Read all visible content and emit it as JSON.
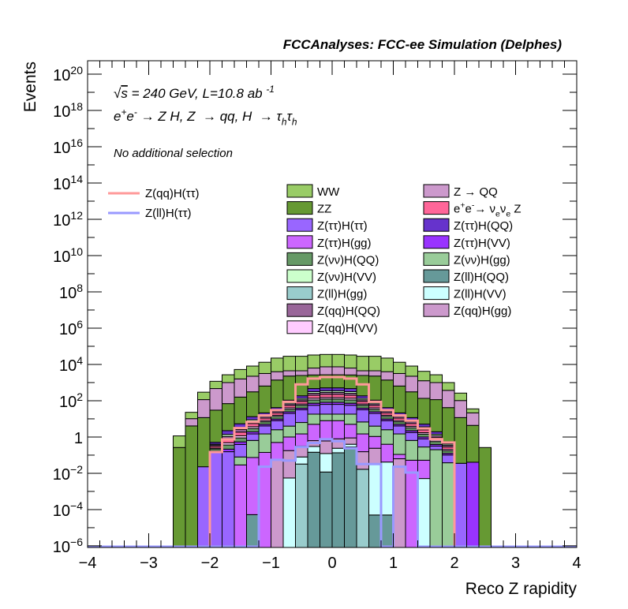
{
  "chart_data": {
    "type": "bar",
    "subtype": "stacked-histogram-log",
    "title": "FCCAnalyses: FCC-ee Simulation (Delphes)",
    "xlabel": "Reco Z rapidity",
    "ylabel": "Events",
    "xlim": [
      -4,
      4
    ],
    "ylim_log10": [
      -6.09,
      20.74
    ],
    "yscale": "log",
    "grid": false,
    "x_ticks": [
      {
        "value": -4,
        "label": "−4"
      },
      {
        "value": -3,
        "label": "−3"
      },
      {
        "value": -2,
        "label": "−2"
      },
      {
        "value": -1,
        "label": "−1"
      },
      {
        "value": 0,
        "label": "0"
      },
      {
        "value": 1,
        "label": "1"
      },
      {
        "value": 2,
        "label": "2"
      },
      {
        "value": 3,
        "label": "3"
      },
      {
        "value": 4,
        "label": "4"
      }
    ],
    "x_minor_step": 0.2,
    "y_ticks": [
      {
        "log10": 20,
        "base": "10",
        "exp": "20"
      },
      {
        "log10": 18,
        "base": "10",
        "exp": "18"
      },
      {
        "log10": 16,
        "base": "10",
        "exp": "16"
      },
      {
        "log10": 14,
        "base": "10",
        "exp": "14"
      },
      {
        "log10": 12,
        "base": "10",
        "exp": "12"
      },
      {
        "log10": 10,
        "base": "10",
        "exp": "10"
      },
      {
        "log10": 8,
        "base": "10",
        "exp": "8"
      },
      {
        "log10": 6,
        "base": "10",
        "exp": "6"
      },
      {
        "log10": 4,
        "base": "10",
        "exp": "4"
      },
      {
        "log10": 2,
        "base": "10",
        "exp": "2"
      },
      {
        "log10": 0,
        "base": "1",
        "exp": ""
      },
      {
        "log10": -2,
        "base": "10",
        "exp": "−2"
      },
      {
        "log10": -4,
        "base": "10",
        "exp": "−4"
      },
      {
        "log10": -6,
        "base": "10",
        "exp": "−6"
      }
    ],
    "bins": {
      "start": -2.6,
      "width": 0.2,
      "count": 26
    },
    "value_encoding": "log10 of cumulative stacked top per bin (null = no entries)",
    "series": [
      {
        "label": [
          {
            "t": "WW"
          }
        ],
        "color": "#99cc66",
        "kind": "stack",
        "stack_index": 16,
        "log10_top": [
          0.06,
          1.36,
          2.47,
          3.07,
          3.43,
          3.72,
          3.91,
          4.12,
          4.35,
          4.45,
          4.45,
          4.52,
          4.55,
          4.55,
          4.52,
          4.45,
          4.45,
          4.35,
          4.12,
          3.91,
          3.62,
          3.43,
          3.0,
          2.42,
          1.55,
          null
        ]
      },
      {
        "label": [
          {
            "t": "Z → QQ"
          }
        ],
        "color": "#cc99cc",
        "kind": "stack",
        "stack_index": 15,
        "log10_top": [
          null,
          1.01,
          2.06,
          2.67,
          3.0,
          3.2,
          3.35,
          3.5,
          3.6,
          3.65,
          3.65,
          3.8,
          3.87,
          3.87,
          3.8,
          3.65,
          3.65,
          3.6,
          3.5,
          3.35,
          3.1,
          3.0,
          2.57,
          2.01,
          1.33,
          null
        ]
      },
      {
        "label": [
          {
            "t": "ZZ"
          }
        ],
        "color": "#669933",
        "kind": "stack",
        "stack_index": 14,
        "log10_top": [
          -0.58,
          0.61,
          1.07,
          1.48,
          1.84,
          2.2,
          2.49,
          2.81,
          3.14,
          3.36,
          3.39,
          3.42,
          3.43,
          3.43,
          3.42,
          3.39,
          3.36,
          3.14,
          2.81,
          2.49,
          2.13,
          2.06,
          1.62,
          1.07,
          0.64,
          -0.58
        ]
      },
      {
        "label": [
          {
            "t": "e"
          },
          {
            "t": "+",
            "st": "sup"
          },
          {
            "t": "e"
          },
          {
            "t": "-",
            "st": "sup"
          },
          {
            "t": "→ ν"
          },
          {
            "t": "e",
            "st": "sub"
          },
          {
            "t": "ν"
          },
          {
            "t": "e",
            "st": "sub"
          },
          {
            "t": " Z"
          }
        ],
        "color": "#ff6699",
        "kind": "stack",
        "stack_index": 10,
        "log10_top": [
          null,
          null,
          null,
          -0.51,
          -0.11,
          0.27,
          0.74,
          1.04,
          1.33,
          1.74,
          1.96,
          2.3,
          2.35,
          2.35,
          2.3,
          1.96,
          1.74,
          1.33,
          1.04,
          0.74,
          0.39,
          -0.03,
          -0.55,
          null,
          null,
          null
        ]
      },
      {
        "label": [
          {
            "t": "Z(ττ)H(ττ)"
          }
        ],
        "color": "#9966ff",
        "kind": "stack",
        "stack_index": 6,
        "log10_top": [
          null,
          null,
          -1.64,
          -0.84,
          -0.81,
          -0.41,
          0.17,
          0.61,
          0.9,
          1.3,
          1.5,
          1.75,
          1.8,
          1.8,
          1.75,
          1.5,
          1.3,
          0.9,
          0.61,
          0.25,
          -0.1,
          -0.5,
          -0.99,
          -1.45,
          null,
          null
        ]
      },
      {
        "label": [
          {
            "t": "Z(ττ)H(QQ)"
          }
        ],
        "color": "#6633cc",
        "kind": "stack",
        "stack_index": 13,
        "log10_top": [
          null,
          null,
          null,
          -0.29,
          0.35,
          0.73,
          1.12,
          1.33,
          1.62,
          2.03,
          2.27,
          2.67,
          2.71,
          2.71,
          2.67,
          2.27,
          2.03,
          1.62,
          1.33,
          1.07,
          0.71,
          0.29,
          -0.26,
          null,
          null,
          null
        ]
      },
      {
        "label": [
          {
            "t": "Z(ττ)H(gg)"
          }
        ],
        "color": "#cc66ff",
        "kind": "stack",
        "stack_index": 4,
        "log10_top": [
          null,
          null,
          null,
          null,
          null,
          -1.54,
          -1.13,
          -0.85,
          -0.3,
          0.0,
          0.17,
          0.7,
          0.9,
          0.9,
          0.7,
          0.17,
          0.03,
          -0.4,
          -0.96,
          -1.28,
          -1.28,
          null,
          null,
          null,
          null,
          null
        ]
      },
      {
        "label": [
          {
            "t": "Z(ττ)H(VV)"
          }
        ],
        "color": "#9933ff",
        "kind": "stack",
        "stack_index": 7,
        "log10_top": [
          null,
          null,
          null,
          -0.77,
          -0.67,
          -0.27,
          0.28,
          0.7,
          0.99,
          1.39,
          1.59,
          1.86,
          1.91,
          1.91,
          1.86,
          1.59,
          1.39,
          0.99,
          0.7,
          0.35,
          0.0,
          -0.41,
          -0.9,
          null,
          -1.39,
          null
        ]
      },
      {
        "label": [
          {
            "t": "Z(νν)H(QQ)"
          }
        ],
        "color": "#669966",
        "kind": "stack",
        "stack_index": 8,
        "log10_top": [
          null,
          null,
          null,
          -0.66,
          -0.44,
          -0.05,
          0.47,
          0.84,
          1.13,
          1.53,
          1.75,
          2.04,
          2.09,
          2.09,
          2.04,
          1.75,
          1.53,
          1.13,
          0.84,
          0.51,
          0.16,
          -0.25,
          -0.76,
          null,
          null,
          null
        ]
      },
      {
        "label": [
          {
            "t": "Z(νν)H(gg)"
          }
        ],
        "color": "#99cc99",
        "kind": "stack",
        "stack_index": 5,
        "log10_top": [
          null,
          null,
          null,
          null,
          null,
          -1.1,
          -0.19,
          0.17,
          0.4,
          0.6,
          0.8,
          1.26,
          1.26,
          1.26,
          1.26,
          0.83,
          0.6,
          0.4,
          0.17,
          -0.19,
          -0.55,
          -0.7,
          -1.42,
          null,
          null,
          null
        ]
      },
      {
        "label": [
          {
            "t": "Z(νν)H(VV)"
          }
        ],
        "color": "#ccffcc",
        "kind": "stack",
        "stack_index": 12,
        "log10_top": [
          null,
          null,
          null,
          -0.39,
          0.14,
          0.52,
          0.95,
          1.2,
          1.49,
          1.9,
          2.13,
          2.5,
          2.55,
          2.55,
          2.5,
          2.13,
          1.9,
          1.49,
          1.2,
          0.92,
          0.56,
          0.15,
          -0.39,
          null,
          null,
          null
        ]
      },
      {
        "label": [
          {
            "t": "Z(ll)H(QQ)"
          }
        ],
        "color": "#669999",
        "kind": "stack",
        "stack_index": 0,
        "log10_top": [
          null,
          null,
          null,
          null,
          null,
          null,
          -4.28,
          null,
          null,
          null,
          null,
          -0.84,
          -1.93,
          -0.87,
          -0.55,
          null,
          -4.3,
          -4.3,
          null,
          null,
          null,
          null,
          null,
          null,
          null,
          null
        ]
      },
      {
        "label": [
          {
            "t": "Z(ll)H(gg)"
          }
        ],
        "color": "#99cccc",
        "kind": "stack",
        "stack_index": 1,
        "log10_top": [
          null,
          null,
          null,
          null,
          null,
          null,
          null,
          null,
          null,
          null,
          -1.49,
          null,
          null,
          null,
          null,
          -1.78,
          null,
          null,
          null,
          null,
          null,
          null,
          null,
          null,
          null,
          null
        ]
      },
      {
        "label": [
          {
            "t": "Z(ll)H(VV)"
          }
        ],
        "color": "#ccffff",
        "kind": "stack",
        "stack_index": 2,
        "log10_top": [
          null,
          null,
          null,
          null,
          null,
          null,
          null,
          null,
          null,
          -2.26,
          -1.1,
          -0.52,
          -0.91,
          -0.62,
          -0.4,
          null,
          -1.52,
          -1.38,
          null,
          null,
          -2.29,
          null,
          null,
          null,
          null,
          null
        ]
      },
      {
        "label": [
          {
            "t": "Z(qq)H(QQ)"
          }
        ],
        "color": "#996699",
        "kind": "stack",
        "stack_index": 11,
        "log10_top": [
          null,
          null,
          null,
          -0.44,
          0.03,
          0.41,
          0.85,
          1.13,
          1.42,
          1.83,
          2.05,
          2.41,
          2.46,
          2.46,
          2.41,
          2.05,
          1.83,
          1.42,
          1.13,
          0.84,
          0.48,
          0.07,
          -0.46,
          null,
          null,
          null
        ]
      },
      {
        "label": [
          {
            "t": "Z(qq)H(gg)"
          }
        ],
        "color": "#cc99cc",
        "kind": "stack",
        "stack_index": 3,
        "log10_top": [
          null,
          null,
          null,
          null,
          null,
          null,
          null,
          null,
          -1.28,
          -0.75,
          -0.5,
          -0.2,
          -0.22,
          -0.1,
          -0.05,
          -0.81,
          -0.62,
          null,
          -1.2,
          null,
          null,
          null,
          null,
          null,
          null,
          null
        ]
      },
      {
        "label": [
          {
            "t": "Z(qq)H(VV)"
          }
        ],
        "color": "#ffccff",
        "kind": "stack",
        "stack_index": 9,
        "log10_top": [
          null,
          null,
          null,
          -0.61,
          -0.32,
          0.07,
          0.57,
          0.91,
          1.2,
          1.61,
          1.82,
          2.14,
          2.18,
          2.18,
          2.14,
          1.82,
          1.61,
          1.2,
          0.91,
          0.59,
          0.24,
          -0.17,
          -0.68,
          null,
          null,
          null
        ]
      }
    ],
    "overlays": [
      {
        "label": [
          {
            "t": "Z(qq)H(ττ)"
          }
        ],
        "color": "#ff9999",
        "kind": "line",
        "log10_value": [
          null,
          null,
          null,
          -0.83,
          -0.13,
          0.49,
          0.83,
          1.19,
          1.48,
          1.94,
          2.9,
          3.22,
          3.3,
          3.3,
          3.22,
          2.9,
          1.94,
          1.48,
          1.19,
          0.9,
          0.47,
          -0.12,
          -0.3,
          null,
          null,
          null
        ]
      },
      {
        "label": [
          {
            "t": "Z(ll)H(ττ)"
          }
        ],
        "color": "#9999ff",
        "kind": "line",
        "log10_value": [
          null,
          null,
          null,
          null,
          null,
          null,
          null,
          -1.64,
          -1.26,
          -1.3,
          -0.55,
          -0.33,
          -0.12,
          -0.23,
          -0.62,
          -1.49,
          -1.49,
          null,
          -1.64,
          -1.96,
          null,
          null,
          null,
          null,
          null,
          null
        ]
      }
    ],
    "legend": {
      "stack_placement": "top-center, two columns",
      "line_placement": "top-left"
    }
  },
  "annotations": {
    "energy_lumi": [
      {
        "t": "√"
      },
      {
        "t": "s",
        "st": "ovl"
      },
      {
        "t": " = 240 GeV, L=10.8 ab "
      },
      {
        "t": "-1",
        "st": "sup"
      }
    ],
    "process": [
      {
        "t": "e"
      },
      {
        "t": "+",
        "st": "sup"
      },
      {
        "t": "e"
      },
      {
        "t": "-",
        "st": "sup"
      },
      {
        "t": " → Z H, Z  → qq, H  → τ"
      },
      {
        "t": "h",
        "st": "sub"
      },
      {
        "t": "τ"
      },
      {
        "t": "h",
        "st": "sub"
      }
    ],
    "selection": "No additional selection"
  }
}
